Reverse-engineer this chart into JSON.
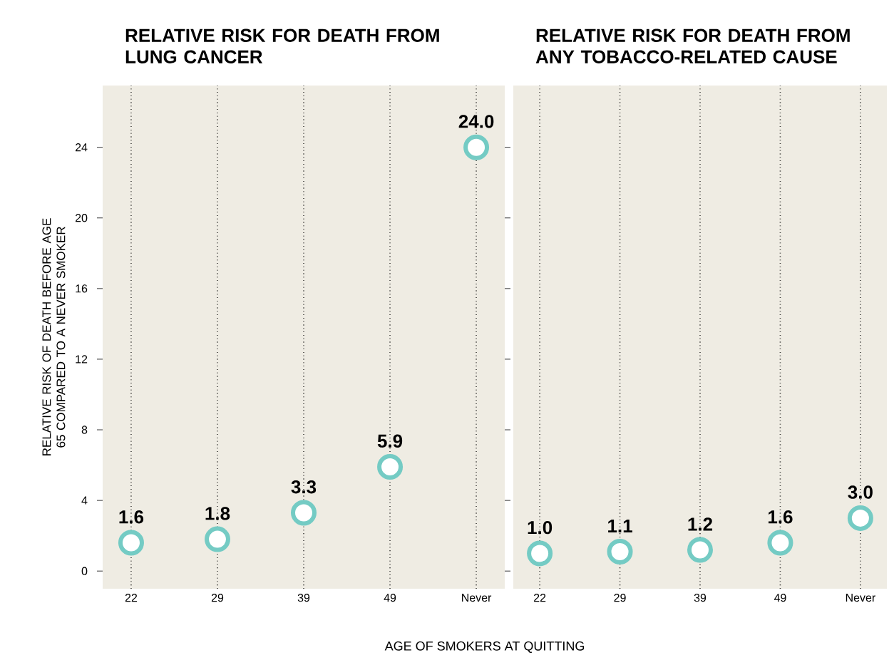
{
  "chart_data": [
    {
      "type": "scatter",
      "title": "RELATIVE RISK FOR DEATH FROM LUNG CANCER",
      "xlabel": "AGE OF SMOKERS AT QUITTING",
      "ylabel": "RELATIVE RISK OF DEATH BEFORE AGE 65 COMPARED TO A NEVER SMOKER",
      "categories": [
        "22",
        "29",
        "39",
        "49",
        "Never"
      ],
      "values": [
        1.6,
        1.8,
        3.3,
        5.9,
        24.0
      ],
      "value_labels": [
        "1.6",
        "1.8",
        "3.3",
        "5.9",
        "24.0"
      ],
      "color": "#74cbc4",
      "marker": "circle",
      "grid": "x",
      "ylim": [
        -1,
        27.5
      ],
      "yticks": [
        0,
        4,
        8,
        12,
        16,
        20,
        24
      ]
    },
    {
      "type": "scatter",
      "title": "RELATIVE RISK FOR DEATH FROM ANY TOBACCO-RELATED CAUSE",
      "categories": [
        "22",
        "29",
        "39",
        "49",
        "Never"
      ],
      "values": [
        1.0,
        1.1,
        1.2,
        1.6,
        3.0
      ],
      "value_labels": [
        "1.0",
        "1.1",
        "1.2",
        "1.6",
        "3.0"
      ],
      "color": "#74cbc4",
      "marker": "circle",
      "grid": "x",
      "tick_labels": "x",
      "ylim": [
        -1,
        27.5
      ],
      "yticks": [
        0,
        4,
        8,
        12,
        16,
        20,
        24
      ]
    }
  ]
}
